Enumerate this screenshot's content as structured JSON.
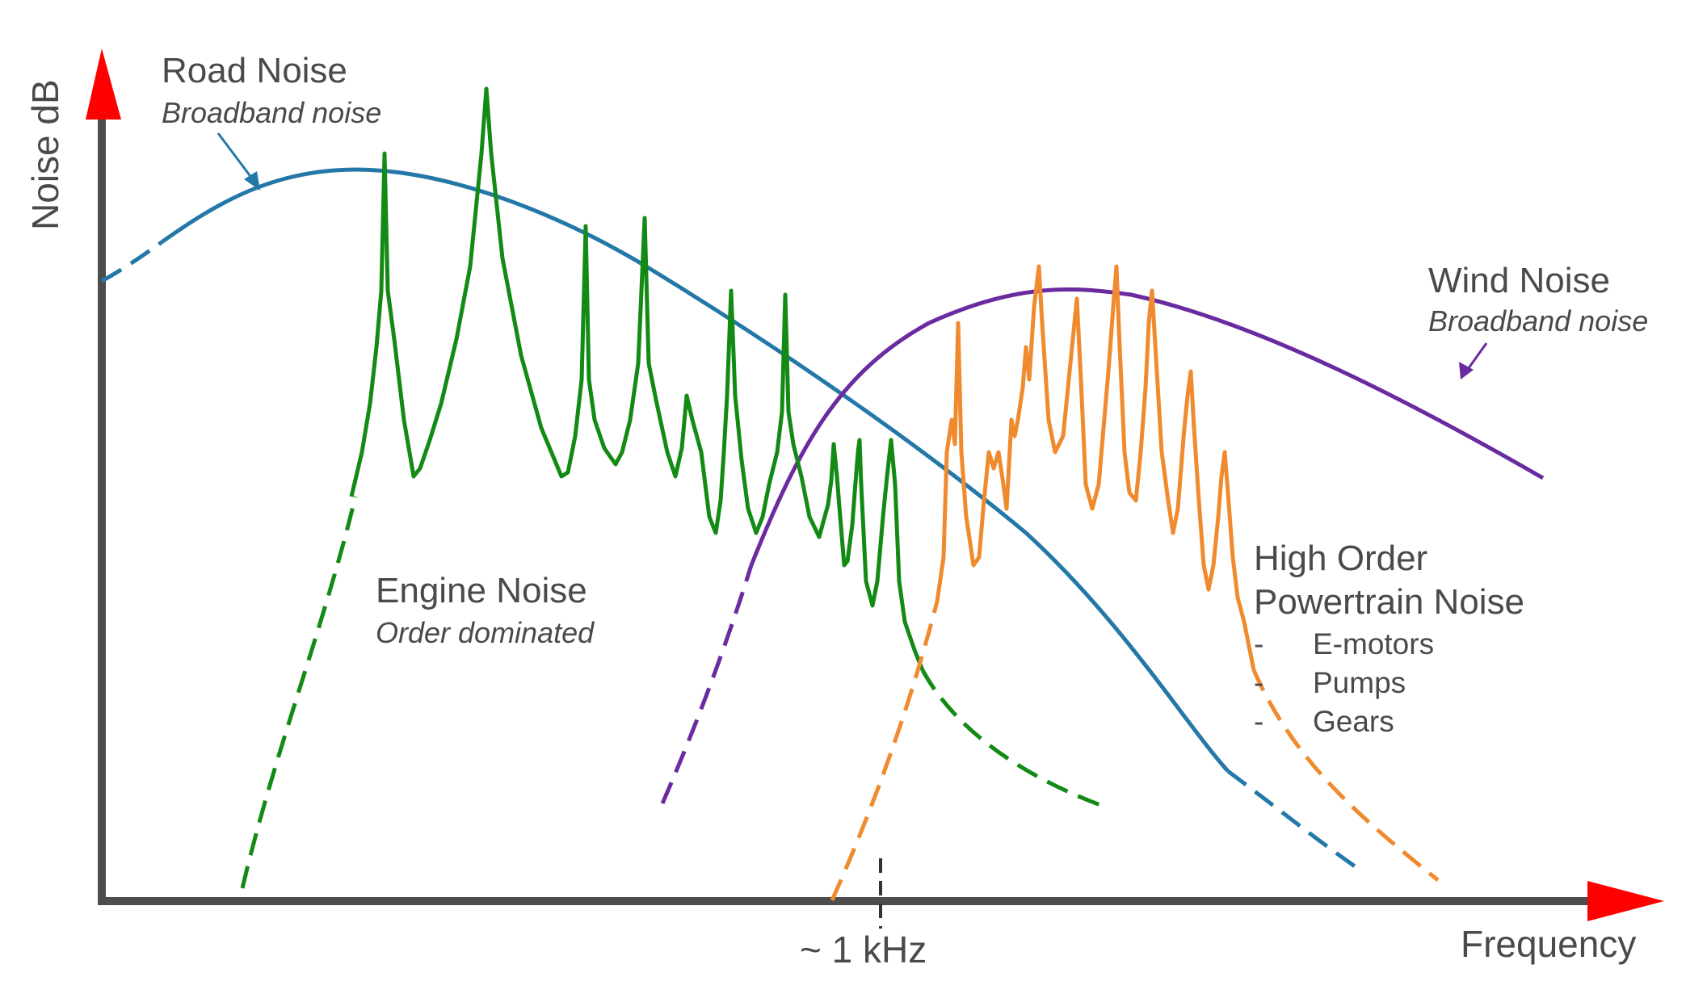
{
  "axes": {
    "y_label": "Noise dB",
    "x_label": "Frequency",
    "x_marker": "~ 1 kHz"
  },
  "road_noise": {
    "title": "Road Noise",
    "subtitle": "Broadband noise"
  },
  "engine_noise": {
    "title": "Engine Noise",
    "subtitle": "Order dominated"
  },
  "wind_noise": {
    "title": "Wind Noise",
    "subtitle": "Broadband noise"
  },
  "high_order": {
    "title_line1": "High Order",
    "title_line2": "Powertrain Noise",
    "items": [
      {
        "dash": "-",
        "label": "E-motors"
      },
      {
        "dash": "-",
        "label": "Pumps"
      },
      {
        "dash": "-",
        "label": "Gears"
      }
    ]
  },
  "colors": {
    "axis": "#4d4d4d",
    "arrow": "#ff0000",
    "road": "#2478a8",
    "engine": "#138a13",
    "wind": "#6a2ba0",
    "powertrain": "#f08a2e",
    "text": "#4a4a4a"
  }
}
